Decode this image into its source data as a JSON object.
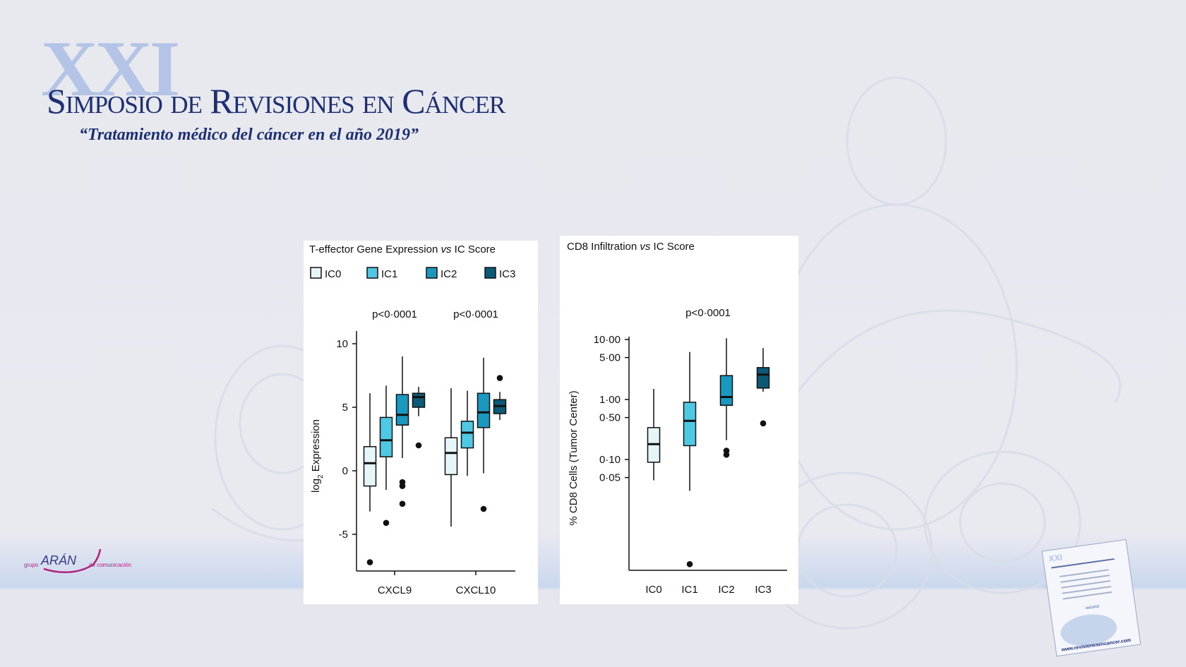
{
  "header": {
    "numeral": "XXI",
    "title": "Simposio de Revisiones en Cáncer",
    "subtitle": "“Tratamiento médico del cáncer en el año 2019”"
  },
  "sponsor": {
    "brand": "ARÁN",
    "prefix": "grupo",
    "suffix": "de comunicación"
  },
  "brochure": {
    "url": "www.revisionesencancer.com",
    "city": "MADRID"
  },
  "colors": {
    "IC0": "#e6f6f8",
    "IC1": "#4dc9e3",
    "IC2": "#1a98bf",
    "IC3": "#0c5a78",
    "title": "#1d2f73"
  },
  "chart_data": [
    {
      "type": "box",
      "title": "T-effector Gene Expression vs IC Score",
      "title_parts": [
        "T-effector Gene Expression ",
        "vs",
        " IC Score"
      ],
      "legend": [
        "IC0",
        "IC1",
        "IC2",
        "IC3"
      ],
      "ylabel": "log2 Expression",
      "ylabel_parts": [
        "log",
        "2",
        " Expression"
      ],
      "ylim": [
        -8,
        10.5
      ],
      "yticks": [
        "10",
        "5",
        "0",
        "-5"
      ],
      "ytick_values": [
        10,
        5,
        0,
        -5
      ],
      "categories": [
        "CXCL9",
        "CXCL10"
      ],
      "pvalues": [
        "p<0·0001",
        "p<0·0001"
      ],
      "groups": [
        {
          "category": "CXCL9",
          "series": "IC0",
          "min": -3.2,
          "q1": -1.2,
          "median": 0.6,
          "q3": 1.9,
          "max": 6.1,
          "outliers": [
            -7.2
          ]
        },
        {
          "category": "CXCL9",
          "series": "IC1",
          "min": -1.5,
          "q1": 1.1,
          "median": 2.4,
          "q3": 4.2,
          "max": 6.7,
          "outliers": [
            -4.1
          ]
        },
        {
          "category": "CXCL9",
          "series": "IC2",
          "min": 1.0,
          "q1": 3.6,
          "median": 4.4,
          "q3": 6.0,
          "max": 9.0,
          "outliers": [
            -0.9,
            -1.2,
            -2.6
          ]
        },
        {
          "category": "CXCL9",
          "series": "IC3",
          "min": 4.3,
          "q1": 5.0,
          "median": 5.8,
          "q3": 6.1,
          "max": 6.6,
          "outliers": [
            2.0
          ]
        },
        {
          "category": "CXCL10",
          "series": "IC0",
          "min": -4.4,
          "q1": -0.3,
          "median": 1.4,
          "q3": 2.6,
          "max": 6.5,
          "outliers": []
        },
        {
          "category": "CXCL10",
          "series": "IC1",
          "min": -0.4,
          "q1": 1.8,
          "median": 3.0,
          "q3": 3.9,
          "max": 6.3,
          "outliers": []
        },
        {
          "category": "CXCL10",
          "series": "IC2",
          "min": -0.2,
          "q1": 3.4,
          "median": 4.6,
          "q3": 6.1,
          "max": 8.9,
          "outliers": [
            -3.0
          ]
        },
        {
          "category": "CXCL10",
          "series": "IC3",
          "min": 4.0,
          "q1": 4.5,
          "median": 5.1,
          "q3": 5.6,
          "max": 6.2,
          "outliers": [
            7.3
          ]
        }
      ]
    },
    {
      "type": "box",
      "title": "CD8 Infiltration vs IC Score",
      "title_parts": [
        "CD8 Infiltration ",
        "vs",
        " IC Score"
      ],
      "ylabel": "% CD8 Cells (Tumor Center)",
      "yscale": "log",
      "ylim": [
        0.001,
        11
      ],
      "yticks": [
        "10·00",
        "5·00",
        "1·00",
        "0·50",
        "0·10",
        "0·05"
      ],
      "ytick_values": [
        10,
        5,
        1,
        0.5,
        0.1,
        0.05
      ],
      "categories": [
        "IC0",
        "IC1",
        "IC2",
        "IC3"
      ],
      "pvalue": "p<0·0001",
      "groups": [
        {
          "category": "IC0",
          "min": 0.045,
          "q1": 0.09,
          "median": 0.18,
          "q3": 0.34,
          "max": 1.5,
          "outliers": []
        },
        {
          "category": "IC1",
          "min": 0.03,
          "q1": 0.17,
          "median": 0.44,
          "q3": 0.9,
          "max": 6.2,
          "outliers": [
            0.0018
          ]
        },
        {
          "category": "IC2",
          "min": 0.21,
          "q1": 0.8,
          "median": 1.1,
          "q3": 2.5,
          "max": 10.5,
          "outliers": [
            0.14,
            0.12
          ]
        },
        {
          "category": "IC3",
          "min": 1.35,
          "q1": 1.55,
          "median": 2.6,
          "q3": 3.4,
          "max": 7.2,
          "outliers": [
            0.4
          ]
        }
      ]
    }
  ]
}
